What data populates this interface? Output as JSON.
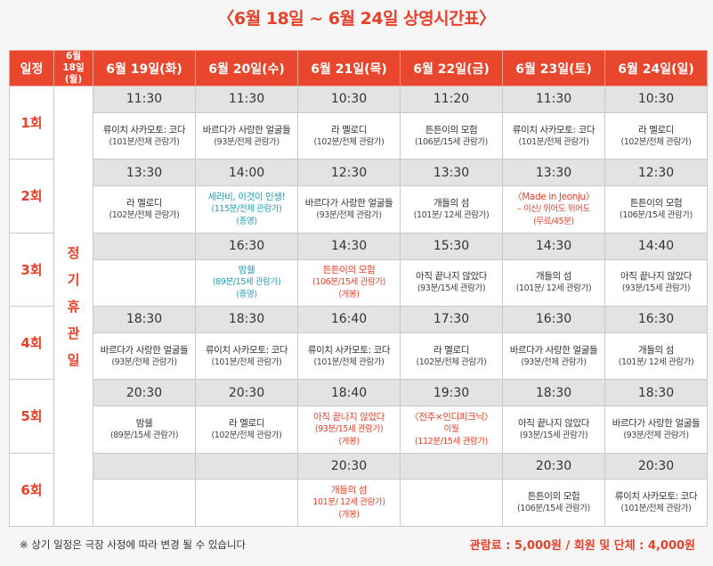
{
  "title": "〈6월 18일 ~ 6월 24일 상영시간표〉",
  "header": {
    "schedule": "일정",
    "closed_day_line1": "6월",
    "closed_day_line2": "18일(월)",
    "days": [
      "6월 19일(화)",
      "6월 20일(수)",
      "6월 21일(목)",
      "6월 22일(금)",
      "6월 23일(토)",
      "6월 24일(일)"
    ]
  },
  "closed": [
    "정",
    "기",
    "휴",
    "관",
    "일"
  ],
  "rows": [
    {
      "slot": "1회",
      "cells": [
        {
          "time": "11:30",
          "title": "류이치 사카모토: 코다",
          "info": "(101분/전체 관람가)",
          "note": "",
          "color": ""
        },
        {
          "time": "11:30",
          "title": "바르다가 사랑한 얼굴들",
          "info": "(93분/전체 관람가)",
          "note": "",
          "color": ""
        },
        {
          "time": "10:30",
          "title": "라 멜로디",
          "info": "(102분/전체 관람가)",
          "note": "",
          "color": ""
        },
        {
          "time": "11:20",
          "title": "튼튼이의 모험",
          "info": "(106분/15세 관람가)",
          "note": "",
          "color": ""
        },
        {
          "time": "11:30",
          "title": "류이치 사카모토: 코다",
          "info": "(101분/전체 관람가)",
          "note": "",
          "color": ""
        },
        {
          "time": "10:30",
          "title": "라 멜로디",
          "info": "(102분/전체 관람가)",
          "note": "",
          "color": ""
        }
      ]
    },
    {
      "slot": "2회",
      "cells": [
        {
          "time": "13:30",
          "title": "라 멜로디",
          "info": "(102분/전체 관람가)",
          "note": "",
          "color": ""
        },
        {
          "time": "14:00",
          "title": "세라비, 이것이 인생!",
          "info": "(115분/전체 관람가)",
          "note": "(종영)",
          "color": "teal"
        },
        {
          "time": "12:30",
          "title": "바르다가 사랑한 얼굴들",
          "info": "(93분/전체 관람가)",
          "note": "",
          "color": ""
        },
        {
          "time": "13:30",
          "title": "개들의 섬",
          "info": "(101분/ 12세 관람가)",
          "note": "",
          "color": ""
        },
        {
          "time": "13:30",
          "title": "〈Made in Jeonju〉",
          "info": "– 이산/ 뛰어도 뛰어도",
          "note": "(무료/45분)",
          "color": "red"
        },
        {
          "time": "12:30",
          "title": "튼튼이의 모험",
          "info": "(106분/15세 관람가)",
          "note": "",
          "color": ""
        }
      ]
    },
    {
      "slot": "3회",
      "cells": [
        {
          "time": "",
          "title": "",
          "info": "",
          "note": "",
          "color": ""
        },
        {
          "time": "16:30",
          "title": "밤쉘",
          "info": "(89분/15세 관람가)",
          "note": "(종영)",
          "color": "teal"
        },
        {
          "time": "14:30",
          "title": "튼튼이의 모험",
          "info": "(106분/15세 관람가)",
          "note": "(개봉)",
          "color": "red"
        },
        {
          "time": "15:30",
          "title": "아직 끝나지 않았다",
          "info": "(93분/15세 관람가)",
          "note": "",
          "color": ""
        },
        {
          "time": "14:30",
          "title": "개들의 섬",
          "info": "(101분/ 12세 관람가)",
          "note": "",
          "color": ""
        },
        {
          "time": "14:40",
          "title": "아직 끝나지 않았다",
          "info": "(93분/15세 관람가)",
          "note": "",
          "color": ""
        }
      ]
    },
    {
      "slot": "4회",
      "cells": [
        {
          "time": "18:30",
          "title": "바르다가 사랑한 얼굴들",
          "info": "(93분/전체 관람가)",
          "note": "",
          "color": ""
        },
        {
          "time": "18:30",
          "title": "류이치 사카모토: 코다",
          "info": "(101분/전체 관람가)",
          "note": "",
          "color": ""
        },
        {
          "time": "16:40",
          "title": "류이치 사카모토: 코다",
          "info": "(101분/전체 관람가)",
          "note": "",
          "color": ""
        },
        {
          "time": "17:30",
          "title": "라 멜로디",
          "info": "(102분/전체 관람가)",
          "note": "",
          "color": ""
        },
        {
          "time": "16:30",
          "title": "바르다가 사랑한 얼굴들",
          "info": "(93분/전체 관람가)",
          "note": "",
          "color": ""
        },
        {
          "time": "16:30",
          "title": "개들의 섬",
          "info": "(101분/ 12세 관람가)",
          "note": "",
          "color": ""
        }
      ]
    },
    {
      "slot": "5회",
      "cells": [
        {
          "time": "20:30",
          "title": "밤쉘",
          "info": "(89분/15세 관람가)",
          "note": "",
          "color": ""
        },
        {
          "time": "20:30",
          "title": "라 멜로디",
          "info": "(102분/전체 관람가)",
          "note": "",
          "color": ""
        },
        {
          "time": "18:40",
          "title": "아직 끝나지 않았다",
          "info": "(93분/15세 관람가)",
          "note": "(개봉)",
          "color": "red"
        },
        {
          "time": "19:30",
          "title": "〈전주×인디피크닉〉",
          "info": "이월",
          "note": "(112분/15세 관람가)",
          "color": "red"
        },
        {
          "time": "18:30",
          "title": "아직 끝나지 않았다",
          "info": "(93분/15세 관람가)",
          "note": "",
          "color": ""
        },
        {
          "time": "18:30",
          "title": "바르다가 사랑한 얼굴들",
          "info": "(93분/전체 관람가)",
          "note": "",
          "color": ""
        }
      ]
    },
    {
      "slot": "6회",
      "cells": [
        {
          "time": "",
          "title": "",
          "info": "",
          "note": "",
          "color": ""
        },
        {
          "time": "",
          "title": "",
          "info": "",
          "note": "",
          "color": ""
        },
        {
          "time": "20:30",
          "title": "개들의 섬",
          "info": "101분/ 12세 관람가)",
          "note": "(개봉)",
          "color": "red"
        },
        {
          "time": "",
          "title": "",
          "info": "",
          "note": "",
          "color": ""
        },
        {
          "time": "20:30",
          "title": "튼튼이의 모험",
          "info": "(106분/15세 관람가)",
          "note": "",
          "color": ""
        },
        {
          "time": "20:30",
          "title": "류이치 사카모토: 코다",
          "info": "(101분/전체 관람가)",
          "note": "",
          "color": ""
        }
      ]
    }
  ],
  "footnote": "※ 상기 일정은 극장 사정에 따라 변경 될 수 있습니다",
  "fee": "관람료 :  5,000원 / 회원 및 단체 : 4,000원",
  "colors": {
    "accent": "#e8412a",
    "teal": "#1ca3b6",
    "header_bg": "#e8472d",
    "time_bg": "#e3e3e3"
  }
}
